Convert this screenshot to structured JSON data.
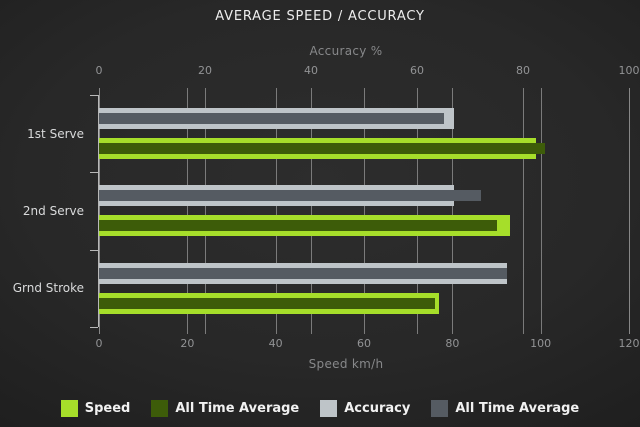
{
  "title": "AVERAGE SPEED / ACCURACY",
  "top_axis": {
    "label": "Accuracy %",
    "ticks": [
      0,
      20,
      40,
      60,
      80,
      100
    ],
    "max": 100
  },
  "bottom_axis": {
    "label": "Speed km/h",
    "ticks": [
      0,
      20,
      40,
      60,
      80,
      100,
      120
    ],
    "max": 120
  },
  "colors": {
    "speed": "#a6de2a",
    "speed_all_time_average": "#3d5c09",
    "accuracy": "#bec4c8",
    "accuracy_all_time_average": "#555b62",
    "gridline": "#8a8a8a",
    "background_center": "#2d2d2d",
    "background_edge": "#121212"
  },
  "chart_data": {
    "type": "bar",
    "orientation": "horizontal",
    "title": "AVERAGE SPEED / ACCURACY",
    "categories": [
      "1st Serve",
      "2nd Serve",
      "Grnd Stroke"
    ],
    "axes": {
      "top": {
        "label": "Accuracy %",
        "range": [
          0,
          100
        ],
        "ticks": [
          0,
          20,
          40,
          60,
          80,
          100
        ]
      },
      "bottom": {
        "label": "Speed km/h",
        "range": [
          0,
          120
        ],
        "ticks": [
          0,
          20,
          40,
          60,
          80,
          100,
          120
        ]
      }
    },
    "grid": true,
    "legend_position": "bottom",
    "series": [
      {
        "name": "Speed",
        "axis": "bottom",
        "color": "#a6de2a",
        "values": [
          99,
          93,
          77
        ]
      },
      {
        "name": "All Time Average",
        "axis": "bottom",
        "color": "#3d5c09",
        "values": [
          101,
          90,
          76
        ]
      },
      {
        "name": "Accuracy",
        "axis": "top",
        "color": "#bec4c8",
        "values": [
          67,
          67,
          77
        ]
      },
      {
        "name": "All Time Average",
        "axis": "top",
        "color": "#555b62",
        "values": [
          65,
          72,
          77
        ]
      }
    ]
  },
  "legend": [
    {
      "label": "Speed",
      "color": "#a6de2a"
    },
    {
      "label": "All Time Average",
      "color": "#3d5c09"
    },
    {
      "label": "Accuracy",
      "color": "#bec4c8"
    },
    {
      "label": "All Time Average",
      "color": "#555b62"
    }
  ]
}
